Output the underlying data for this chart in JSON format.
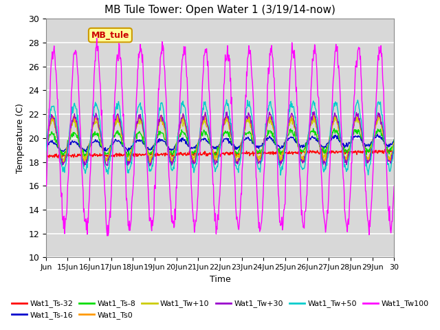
{
  "title": "MB Tule Tower: Open Water 1 (3/19/14-now)",
  "xlabel": "Time",
  "ylabel": "Temperature (C)",
  "ylim": [
    10,
    30
  ],
  "xlim": [
    0,
    16
  ],
  "yticks": [
    10,
    12,
    14,
    16,
    18,
    20,
    22,
    24,
    26,
    28,
    30
  ],
  "xtick_labels": [
    "Jun",
    "15Jun",
    "16Jun",
    "17Jun",
    "18Jun",
    "19Jun",
    "20Jun",
    "21Jun",
    "22Jun",
    "23Jun",
    "24Jun",
    "25Jun",
    "26Jun",
    "27Jun",
    "28Jun",
    "29Jun",
    "30"
  ],
  "series_labels": [
    "Wat1_Ts-32",
    "Wat1_Ts-16",
    "Wat1_Ts-8",
    "Wat1_Ts0",
    "Wat1_Tw+10",
    "Wat1_Tw+30",
    "Wat1_Tw+50",
    "Wat1_Tw100"
  ],
  "series_colors": [
    "#ff0000",
    "#0000cc",
    "#00dd00",
    "#ff9900",
    "#cccc00",
    "#9900cc",
    "#00cccc",
    "#ff00ff"
  ],
  "background_color": "#d8d8d8",
  "plot_background": "#ffffff",
  "grid_color": "#ffffff",
  "annotation_text": "MB_tule",
  "annotation_color": "#cc0000",
  "annotation_bg": "#ffff99",
  "annotation_border": "#cc9900"
}
